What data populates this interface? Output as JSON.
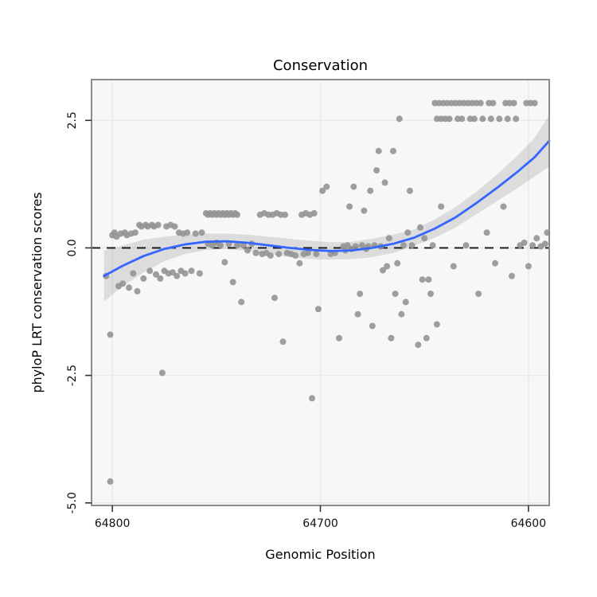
{
  "chart_data": {
    "type": "scatter",
    "title": "Conservation",
    "xlabel": "Genomic Position",
    "ylabel": "phyloP LRT conservation scores",
    "x_reversed": true,
    "xlim": [
      64810,
      64590
    ],
    "ylim": [
      -5.05,
      3.3
    ],
    "xticks": [
      64800,
      64700,
      64600
    ],
    "xtick_labels": [
      "64800",
      "64700",
      "64600"
    ],
    "yticks": [
      -5.0,
      -2.5,
      0.0,
      2.5
    ],
    "ytick_labels": [
      "-5.0",
      "-2.5",
      "0.0",
      "2.5"
    ],
    "hline_y": 0.0,
    "grid": true,
    "legend": "none",
    "colors": {
      "point": "#949494",
      "smooth_line": "#3366FF",
      "ribbon": "#aaaaaa",
      "panel_bg": "#f7f7f7",
      "grid": "#e9e9e9",
      "panel_border": "#8c8c8c",
      "dashed_line": "#111111",
      "tick": "#333333",
      "text": "#000000"
    },
    "points": [
      [
        64803,
        -0.55
      ],
      [
        64801,
        -4.58
      ],
      [
        64801,
        -1.7
      ],
      [
        64800,
        0.25
      ],
      [
        64799,
        0.3
      ],
      [
        64798,
        0.22
      ],
      [
        64797,
        -0.75
      ],
      [
        64796,
        0.28
      ],
      [
        64795,
        -0.7
      ],
      [
        64794,
        0.3
      ],
      [
        64793,
        0.25
      ],
      [
        64792,
        -0.78
      ],
      [
        64791,
        0.28
      ],
      [
        64790,
        -0.5
      ],
      [
        64789,
        0.3
      ],
      [
        64788,
        -0.85
      ],
      [
        64787,
        0.45
      ],
      [
        64786,
        0.42
      ],
      [
        64785,
        -0.6
      ],
      [
        64784,
        0.45
      ],
      [
        64783,
        0.42
      ],
      [
        64782,
        -0.45
      ],
      [
        64781,
        0.45
      ],
      [
        64780,
        0.42
      ],
      [
        64779,
        -0.52
      ],
      [
        64778,
        0.45
      ],
      [
        64777,
        -0.6
      ],
      [
        64776,
        -2.45
      ],
      [
        64775,
        -0.45
      ],
      [
        64774,
        0.42
      ],
      [
        64773,
        -0.5
      ],
      [
        64772,
        0.45
      ],
      [
        64771,
        -0.48
      ],
      [
        64770,
        0.42
      ],
      [
        64769,
        -0.55
      ],
      [
        64768,
        0.3
      ],
      [
        64767,
        -0.45
      ],
      [
        64766,
        0.28
      ],
      [
        64765,
        -0.5
      ],
      [
        64764,
        0.3
      ],
      [
        64762,
        -0.45
      ],
      [
        64760,
        0.28
      ],
      [
        64758,
        -0.5
      ],
      [
        64757,
        0.3
      ],
      [
        64755,
        0.68
      ],
      [
        64754,
        0.65
      ],
      [
        64753,
        0.68
      ],
      [
        64752,
        0.65
      ],
      [
        64751,
        0.68
      ],
      [
        64750,
        0.65
      ],
      [
        64749,
        0.68
      ],
      [
        64748,
        0.65
      ],
      [
        64747,
        0.68
      ],
      [
        64746,
        0.65
      ],
      [
        64745,
        0.68
      ],
      [
        64744,
        0.65
      ],
      [
        64743,
        0.68
      ],
      [
        64742,
        0.65
      ],
      [
        64741,
        0.68
      ],
      [
        64740,
        0.65
      ],
      [
        64754,
        0.08
      ],
      [
        64752,
        0.05
      ],
      [
        64750,
        0.1
      ],
      [
        64748,
        0.05
      ],
      [
        64746,
        -0.28
      ],
      [
        64744,
        0.08
      ],
      [
        64742,
        -0.67
      ],
      [
        64740,
        0.05
      ],
      [
        64738,
        -1.06
      ],
      [
        64737,
        0.05
      ],
      [
        64735,
        -0.05
      ],
      [
        64733,
        0.08
      ],
      [
        64731,
        -0.1
      ],
      [
        64729,
        0.65
      ],
      [
        64727,
        0.68
      ],
      [
        64725,
        0.65
      ],
      [
        64723,
        0.65
      ],
      [
        64721,
        0.68
      ],
      [
        64719,
        0.65
      ],
      [
        64717,
        0.65
      ],
      [
        64709,
        0.65
      ],
      [
        64707,
        0.68
      ],
      [
        64705,
        0.65
      ],
      [
        64703,
        0.68
      ],
      [
        64728,
        -0.12
      ],
      [
        64726,
        -0.1
      ],
      [
        64724,
        -0.15
      ],
      [
        64722,
        -0.98
      ],
      [
        64720,
        -0.12
      ],
      [
        64718,
        -1.84
      ],
      [
        64716,
        -0.1
      ],
      [
        64714,
        -0.12
      ],
      [
        64712,
        -0.15
      ],
      [
        64710,
        -0.3
      ],
      [
        64708,
        -0.12
      ],
      [
        64706,
        -0.1
      ],
      [
        64704,
        -2.95
      ],
      [
        64702,
        -0.12
      ],
      [
        64701,
        -1.2
      ],
      [
        64699,
        1.12
      ],
      [
        64697,
        1.2
      ],
      [
        64695,
        -0.12
      ],
      [
        64693,
        -0.1
      ],
      [
        64691,
        -1.77
      ],
      [
        64689,
        0.03
      ],
      [
        64688,
        -0.05
      ],
      [
        64687,
        0.05
      ],
      [
        64686,
        0.81
      ],
      [
        64685,
        -0.02
      ],
      [
        64684,
        1.2
      ],
      [
        64683,
        0.03
      ],
      [
        64682,
        -1.3
      ],
      [
        64681,
        -0.9
      ],
      [
        64680,
        0.05
      ],
      [
        64679,
        0.73
      ],
      [
        64678,
        -0.02
      ],
      [
        64677,
        0.03
      ],
      [
        64676,
        1.12
      ],
      [
        64675,
        -1.53
      ],
      [
        64674,
        0.05
      ],
      [
        64673,
        1.52
      ],
      [
        64672,
        1.9
      ],
      [
        64671,
        0.03
      ],
      [
        64670,
        -0.44
      ],
      [
        64669,
        1.28
      ],
      [
        64668,
        -0.36
      ],
      [
        64667,
        0.19
      ],
      [
        64666,
        -1.77
      ],
      [
        64665,
        1.9
      ],
      [
        64664,
        -0.9
      ],
      [
        64663,
        -0.3
      ],
      [
        64662,
        2.53
      ],
      [
        64661,
        -1.3
      ],
      [
        64660,
        0.05
      ],
      [
        64659,
        -1.06
      ],
      [
        64658,
        0.3
      ],
      [
        64657,
        1.12
      ],
      [
        64656,
        0.05
      ],
      [
        64653,
        -1.9
      ],
      [
        64652,
        0.4
      ],
      [
        64651,
        -0.62
      ],
      [
        64645,
        2.84
      ],
      [
        64643,
        2.84
      ],
      [
        64641,
        2.84
      ],
      [
        64639,
        2.84
      ],
      [
        64637,
        2.84
      ],
      [
        64635,
        2.84
      ],
      [
        64633,
        2.84
      ],
      [
        64631,
        2.84
      ],
      [
        64629,
        2.84
      ],
      [
        64627,
        2.84
      ],
      [
        64625,
        2.84
      ],
      [
        64623,
        2.84
      ],
      [
        64619,
        2.84
      ],
      [
        64617,
        2.84
      ],
      [
        64611,
        2.84
      ],
      [
        64609,
        2.84
      ],
      [
        64607,
        2.84
      ],
      [
        64601,
        2.84
      ],
      [
        64599,
        2.84
      ],
      [
        64597,
        2.84
      ],
      [
        64644,
        2.53
      ],
      [
        64642,
        2.53
      ],
      [
        64640,
        2.53
      ],
      [
        64638,
        2.53
      ],
      [
        64634,
        2.53
      ],
      [
        64632,
        2.53
      ],
      [
        64628,
        2.53
      ],
      [
        64626,
        2.53
      ],
      [
        64622,
        2.53
      ],
      [
        64618,
        2.53
      ],
      [
        64614,
        2.53
      ],
      [
        64610,
        2.53
      ],
      [
        64606,
        2.53
      ],
      [
        64650,
        0.19
      ],
      [
        64649,
        -1.77
      ],
      [
        64648,
        -0.62
      ],
      [
        64647,
        -0.9
      ],
      [
        64646,
        0.05
      ],
      [
        64644,
        -1.5
      ],
      [
        64642,
        0.81
      ],
      [
        64636,
        -0.36
      ],
      [
        64630,
        0.05
      ],
      [
        64624,
        -0.9
      ],
      [
        64620,
        0.3
      ],
      [
        64616,
        -0.3
      ],
      [
        64612,
        0.81
      ],
      [
        64608,
        -0.55
      ],
      [
        64604,
        0.05
      ],
      [
        64602,
        0.1
      ],
      [
        64600,
        -0.36
      ],
      [
        64598,
        0.05
      ],
      [
        64596,
        0.19
      ],
      [
        64594,
        0.03
      ],
      [
        64592,
        0.08
      ],
      [
        64591,
        0.3
      ]
    ],
    "smooth": {
      "x": [
        64804,
        64795,
        64785,
        64775,
        64765,
        64755,
        64745,
        64735,
        64725,
        64715,
        64705,
        64695,
        64685,
        64675,
        64665,
        64655,
        64645,
        64635,
        64625,
        64615,
        64605,
        64597,
        64590
      ],
      "y": [
        -0.55,
        -0.35,
        -0.16,
        -0.02,
        0.07,
        0.12,
        0.13,
        0.1,
        0.05,
        0.0,
        -0.04,
        -0.06,
        -0.05,
        0.0,
        0.08,
        0.2,
        0.38,
        0.6,
        0.88,
        1.18,
        1.5,
        1.78,
        2.1
      ],
      "lower": [
        -1.05,
        -0.75,
        -0.48,
        -0.26,
        -0.12,
        -0.04,
        -0.02,
        -0.06,
        -0.12,
        -0.18,
        -0.22,
        -0.23,
        -0.22,
        -0.18,
        -0.1,
        0.04,
        0.2,
        0.4,
        0.66,
        0.92,
        1.18,
        1.4,
        1.6
      ],
      "upper": [
        -0.05,
        0.05,
        0.16,
        0.22,
        0.26,
        0.28,
        0.28,
        0.26,
        0.22,
        0.18,
        0.14,
        0.11,
        0.12,
        0.18,
        0.26,
        0.36,
        0.56,
        0.8,
        1.1,
        1.44,
        1.82,
        2.16,
        2.6
      ]
    }
  }
}
